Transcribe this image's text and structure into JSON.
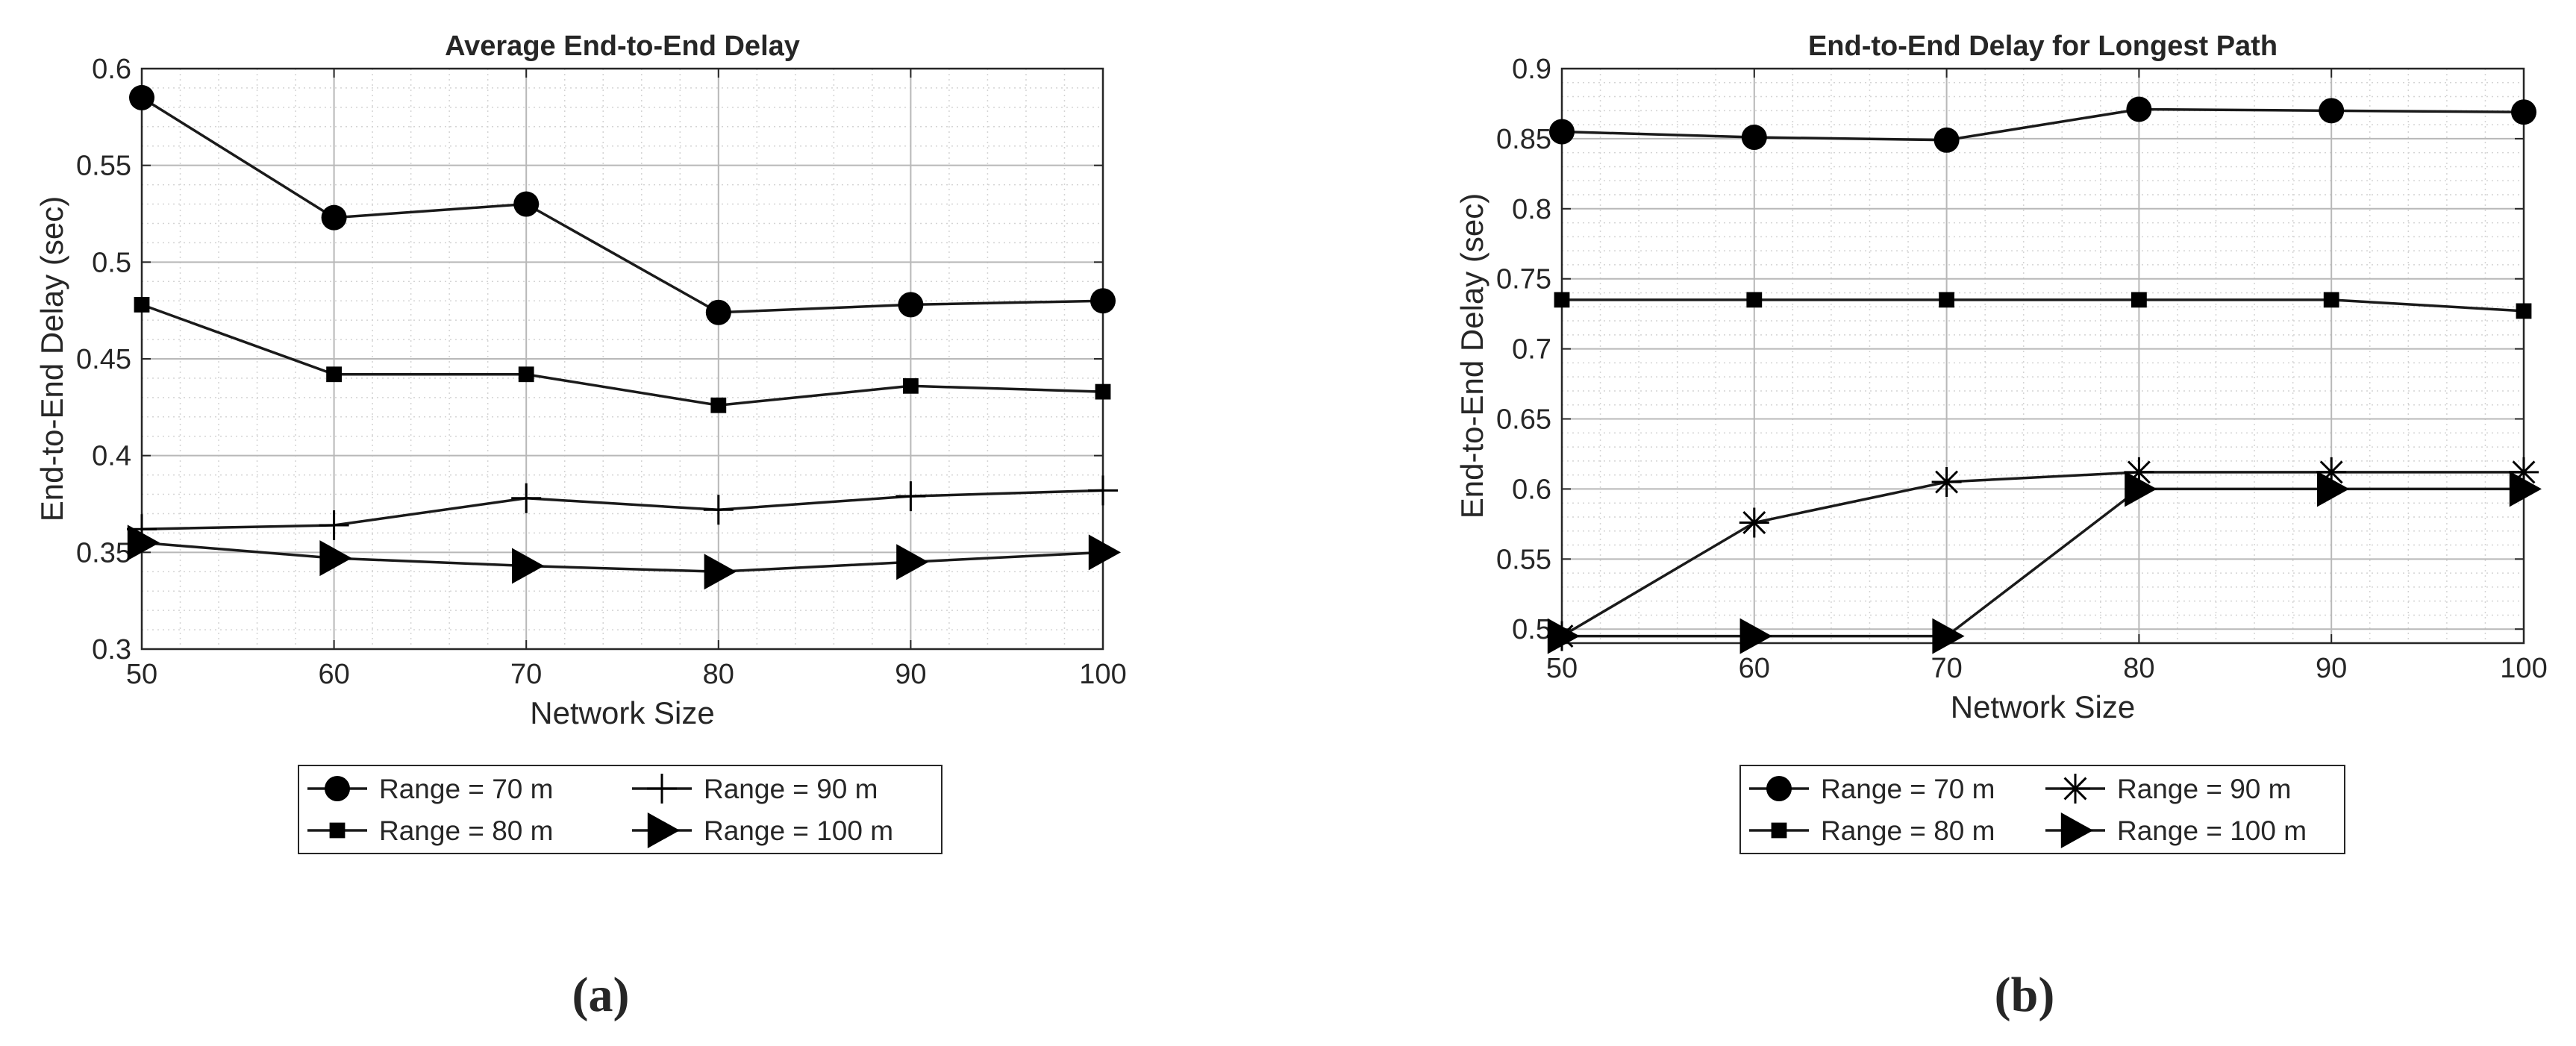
{
  "chart_data": [
    {
      "type": "line",
      "panel_label": "(a)",
      "title": "Average End-to-End Delay",
      "xlabel": "Network Size",
      "ylabel": "End-to-End Delay (sec)",
      "xlim": [
        50,
        100
      ],
      "ylim": [
        0.3,
        0.6
      ],
      "xticks": [
        50,
        60,
        70,
        80,
        90,
        100
      ],
      "yticks": [
        0.3,
        0.35,
        0.4,
        0.45,
        0.5,
        0.55,
        0.6
      ],
      "xtick_labels": [
        "50",
        "60",
        "70",
        "80",
        "90",
        "100"
      ],
      "ytick_labels": [
        "0.3",
        "0.35",
        "0.4",
        "0.45",
        "0.5",
        "0.55",
        "0.6"
      ],
      "grid": true,
      "minor_grid": true,
      "legend_position": "below",
      "x": [
        50,
        60,
        70,
        80,
        90,
        100
      ],
      "series": [
        {
          "name": "Range = 70 m",
          "marker": "circle",
          "values": [
            0.585,
            0.523,
            0.53,
            0.474,
            0.478,
            0.48
          ]
        },
        {
          "name": "Range = 90 m",
          "marker": "plus",
          "values": [
            0.362,
            0.364,
            0.378,
            0.372,
            0.379,
            0.382
          ]
        },
        {
          "name": "Range = 80 m",
          "marker": "square",
          "values": [
            0.478,
            0.442,
            0.442,
            0.426,
            0.436,
            0.433
          ]
        },
        {
          "name": "Range = 100 m",
          "marker": "triangle-right",
          "values": [
            0.355,
            0.347,
            0.343,
            0.34,
            0.345,
            0.35
          ]
        }
      ]
    },
    {
      "type": "line",
      "panel_label": "(b)",
      "title": "End-to-End Delay for Longest Path",
      "xlabel": "Network Size",
      "ylabel": "End-to-End Delay (sec)",
      "xlim": [
        50,
        100
      ],
      "ylim": [
        0.49,
        0.9
      ],
      "xticks": [
        50,
        60,
        70,
        80,
        90,
        100
      ],
      "yticks": [
        0.5,
        0.55,
        0.6,
        0.65,
        0.7,
        0.75,
        0.8,
        0.85,
        0.9
      ],
      "xtick_labels": [
        "50",
        "60",
        "70",
        "80",
        "90",
        "100"
      ],
      "ytick_labels": [
        "0.5",
        "0.55",
        "0.6",
        "0.65",
        "0.7",
        "0.75",
        "0.8",
        "0.85",
        "0.9"
      ],
      "grid": true,
      "minor_grid": true,
      "legend_position": "below",
      "x": [
        50,
        60,
        70,
        80,
        90,
        100
      ],
      "series": [
        {
          "name": "Range = 70 m",
          "marker": "circle",
          "values": [
            0.855,
            0.851,
            0.849,
            0.871,
            0.87,
            0.869
          ]
        },
        {
          "name": "Range = 90 m",
          "marker": "asterisk",
          "values": [
            0.495,
            0.576,
            0.605,
            0.612,
            0.612,
            0.612
          ]
        },
        {
          "name": "Range = 80 m",
          "marker": "square",
          "values": [
            0.735,
            0.735,
            0.735,
            0.735,
            0.735,
            0.727
          ]
        },
        {
          "name": "Range = 100 m",
          "marker": "triangle-right",
          "values": [
            0.495,
            0.495,
            0.495,
            0.6,
            0.6,
            0.6
          ]
        }
      ]
    }
  ]
}
